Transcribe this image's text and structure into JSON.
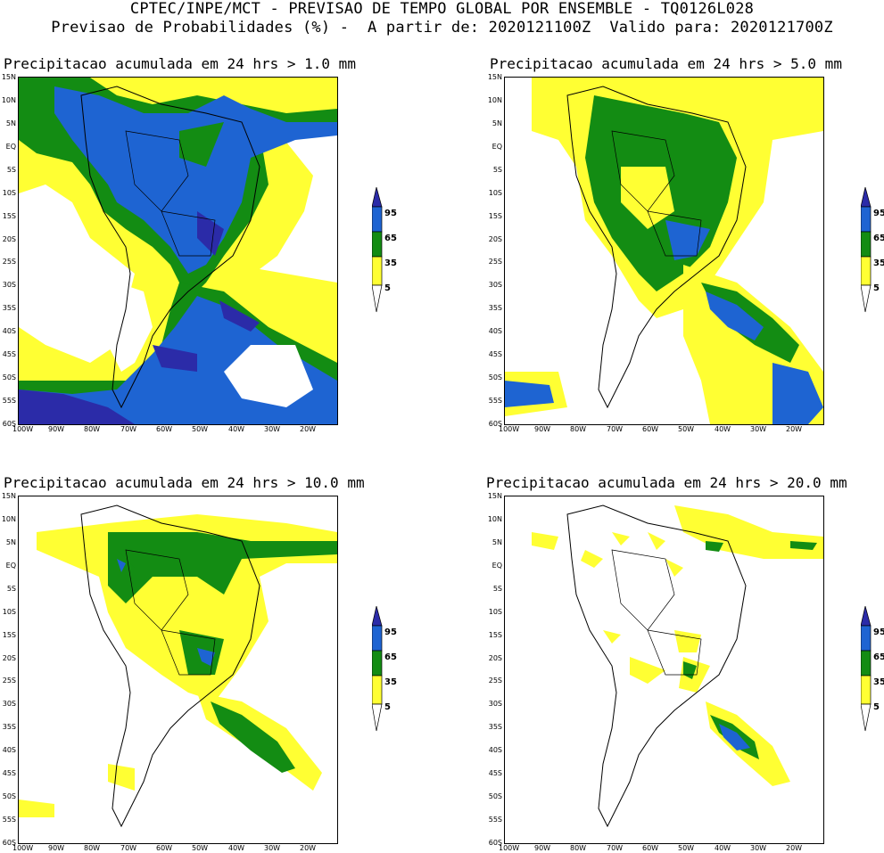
{
  "header": {
    "line1": "CPTEC/INPE/MCT - PREVISAO DE TEMPO GLOBAL POR ENSEMBLE - TQ0126L028",
    "line2": "Previsao de Probabilidades (%) -  A partir de: 2020121100Z  Valido para: 2020121700Z"
  },
  "panels": [
    {
      "title": "Precipitacao acumulada em 24 hrs > 1.0 mm"
    },
    {
      "title": "Precipitacao acumulada em 24 hrs > 5.0 mm"
    },
    {
      "title": "Precipitacao acumulada em 24 hrs > 10.0 mm"
    },
    {
      "title": "Precipitacao acumulada em 24 hrs > 20.0 mm"
    }
  ],
  "lat_labels": [
    "15N",
    "10N",
    "5N",
    "EQ",
    "5S",
    "10S",
    "15S",
    "20S",
    "25S",
    "30S",
    "35S",
    "40S",
    "45S",
    "50S",
    "55S",
    "60S"
  ],
  "lon_labels": [
    "100W",
    "90W",
    "80W",
    "70W",
    "60W",
    "50W",
    "40W",
    "30W",
    "20W"
  ],
  "legend": {
    "levels": [
      "95",
      "65",
      "35",
      "5"
    ],
    "colors": {
      "l95": "#2b2ba8",
      "l65": "#1e64d2",
      "l35": "#138c13",
      "l5": "#ffff33"
    }
  }
}
